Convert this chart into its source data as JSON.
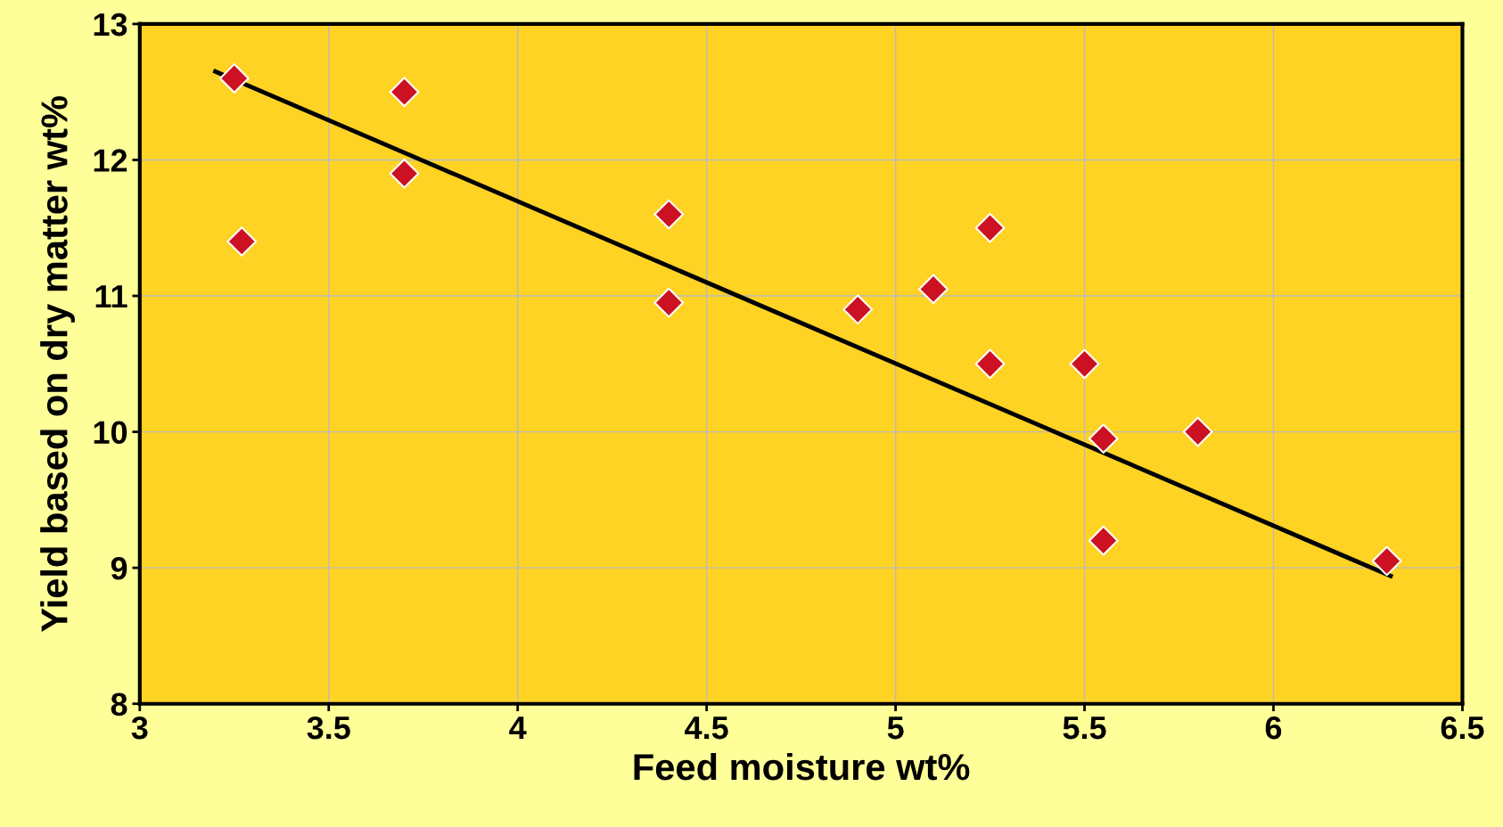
{
  "chart_data": {
    "type": "scatter",
    "xlabel": "Feed moisture wt%",
    "ylabel": "Yield based on dry matter wt%",
    "xlim": [
      3,
      6.5
    ],
    "xticks": [
      3,
      3.5,
      4,
      4.5,
      5,
      5.5,
      6,
      6.5
    ],
    "ylim": [
      8,
      13
    ],
    "yticks": [
      8,
      9,
      10,
      11,
      12,
      13
    ],
    "grid": true,
    "series": [
      {
        "marker": "diamond",
        "color": "#cc1122",
        "x": [
          3.25,
          3.7,
          3.7,
          3.27,
          4.4,
          4.4,
          4.9,
          5.1,
          5.25,
          5.25,
          5.5,
          5.55,
          5.55,
          5.8,
          6.3
        ],
        "values": [
          12.6,
          12.5,
          11.9,
          11.4,
          11.6,
          10.95,
          10.9,
          11.05,
          11.5,
          10.5,
          10.5,
          9.95,
          9.2,
          10.0,
          9.05
        ]
      },
      {
        "type": "line",
        "marker": "none",
        "color": "#000000",
        "x": [
          3.2,
          6.31
        ],
        "values": [
          12.65,
          8.94
        ]
      }
    ]
  }
}
